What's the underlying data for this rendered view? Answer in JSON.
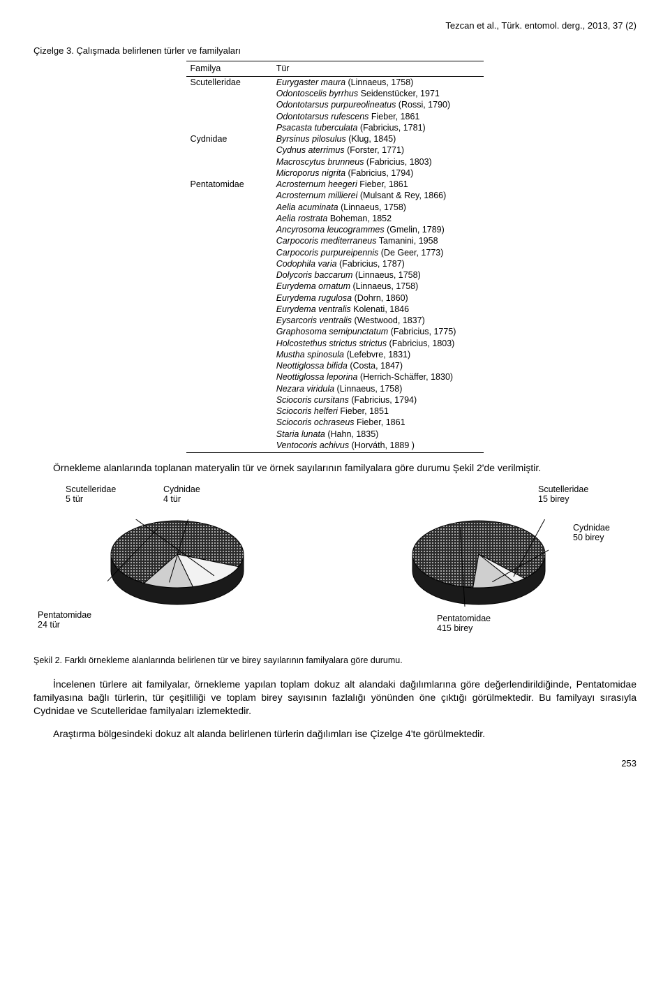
{
  "header": {
    "citation": "Tezcan et al., Türk. entomol. derg., 2013, 37 (2)"
  },
  "table": {
    "caption": "Çizelge 3. Çalışmada belirlenen türler ve familyaları",
    "col1_header": "Familya",
    "col2_header": "Tür",
    "rows": [
      {
        "family": "Scutelleridae",
        "species": "Eurygaster maura",
        "auth": "(Linnaeus, 1758)"
      },
      {
        "family": "",
        "species": "Odontoscelis byrrhus",
        "auth": "Seidenstücker, 1971"
      },
      {
        "family": "",
        "species": "Odontotarsus purpureolineatus",
        "auth": "(Rossi, 1790)"
      },
      {
        "family": "",
        "species": "Odontotarsus rufescens",
        "auth": "Fieber, 1861"
      },
      {
        "family": "",
        "species": "Psacasta tuberculata",
        "auth": "(Fabricius, 1781)"
      },
      {
        "family": "Cydnidae",
        "species": "Byrsinus pilosulus",
        "auth": "(Klug, 1845)"
      },
      {
        "family": "",
        "species": "Cydnus aterrimus",
        "auth": "(Forster, 1771)"
      },
      {
        "family": "",
        "species": "Macroscytus brunneus",
        "auth": "(Fabricius, 1803)"
      },
      {
        "family": "",
        "species": "Microporus nigrita",
        "auth": "(Fabricius, 1794)"
      },
      {
        "family": "Pentatomidae",
        "species": "Acrosternum heegeri",
        "auth": "Fieber, 1861"
      },
      {
        "family": "",
        "species": "Acrosternum millierei",
        "auth": "(Mulsant & Rey, 1866)"
      },
      {
        "family": "",
        "species": "Aelia acuminata",
        "auth": "(Linnaeus, 1758)"
      },
      {
        "family": "",
        "species": "Aelia rostrata",
        "auth": "Boheman, 1852"
      },
      {
        "family": "",
        "species": "Ancyrosoma leucogrammes",
        "auth": "(Gmelin, 1789)"
      },
      {
        "family": "",
        "species": "Carpocoris mediterraneus",
        "auth": "Tamanini, 1958"
      },
      {
        "family": "",
        "species": "Carpocoris purpureipennis",
        "auth": "(De Geer, 1773)"
      },
      {
        "family": "",
        "species": "Codophila varia",
        "auth": "(Fabricius, 1787)"
      },
      {
        "family": "",
        "species": "Dolycoris baccarum",
        "auth": "(Linnaeus, 1758)"
      },
      {
        "family": "",
        "species": "Eurydema ornatum",
        "auth": "(Linnaeus, 1758)"
      },
      {
        "family": "",
        "species": "Eurydema rugulosa",
        "auth": "(Dohrn, 1860)"
      },
      {
        "family": "",
        "species": "Eurydema ventralis",
        "auth": "Kolenati, 1846"
      },
      {
        "family": "",
        "species": "Eysarcoris ventralis",
        "auth": "(Westwood, 1837)"
      },
      {
        "family": "",
        "species": "Graphosoma semipunctatum",
        "auth": "(Fabricius, 1775)"
      },
      {
        "family": "",
        "species": "Holcostethus strictus strictus",
        "auth": "(Fabricius, 1803)"
      },
      {
        "family": "",
        "species": "Mustha spinosula",
        "auth": "(Lefebvre, 1831)"
      },
      {
        "family": "",
        "species": "Neottiglossa bifida",
        "auth": "(Costa, 1847)"
      },
      {
        "family": "",
        "species": "Neottiglossa leporina",
        "auth": "(Herrich-Schäffer, 1830)"
      },
      {
        "family": "",
        "species": "Nezara viridula",
        "auth": "(Linnaeus, 1758)"
      },
      {
        "family": "",
        "species": "Sciocoris cursitans",
        "auth": "(Fabricius, 1794)"
      },
      {
        "family": "",
        "species": "Sciocoris helferi",
        "auth": "Fieber, 1851"
      },
      {
        "family": "",
        "species": "Sciocoris ochraseus",
        "auth": "Fieber, 1861"
      },
      {
        "family": "",
        "species": "Staria lunata",
        "auth": "(Hahn, 1835)"
      },
      {
        "family": "",
        "species": "Ventocoris achivus",
        "auth": "(Horváth, 1889 )"
      }
    ]
  },
  "para1": "Örnekleme alanlarında toplanan materyalin tür ve örnek sayılarının familyalara göre durumu Şekil 2'de verilmiştir.",
  "charts": {
    "type": "pie-3d",
    "pattern_fill": "dotted-black",
    "side_color": "#1a1a1a",
    "slice_light": "#f2f2f2",
    "outline": "#000000",
    "left": {
      "labels": {
        "scut": "Scutelleridae\n5 tür",
        "cyd": "Cydnidae\n4 tür",
        "pent": "Pentatomidae\n24 tür"
      },
      "slices": [
        {
          "name": "Pentatomidae",
          "value": 24
        },
        {
          "name": "Scutelleridae",
          "value": 5
        },
        {
          "name": "Cydnidae",
          "value": 4
        }
      ]
    },
    "right": {
      "labels": {
        "scut": "Scutelleridae\n15 birey",
        "cyd": "Cydnidae\n50 birey",
        "pent": "Pentatomidae\n415 birey"
      },
      "slices": [
        {
          "name": "Pentatomidae",
          "value": 415
        },
        {
          "name": "Scutelleridae",
          "value": 15
        },
        {
          "name": "Cydnidae",
          "value": 50
        }
      ]
    }
  },
  "fig_caption": "Şekil 2. Farklı örnekleme alanlarında belirlenen tür ve birey sayılarının familyalara göre durumu.",
  "para2": "İncelenen türlere ait familyalar, örnekleme yapılan toplam dokuz alt alandaki dağılımlarına göre değerlendirildiğinde, Pentatomidae familyasına bağlı türlerin, tür çeşitliliği ve toplam birey sayısının fazlalığı yönünden öne çıktığı görülmektedir. Bu familyayı sırasıyla Cydnidae ve Scutelleridae familyaları izlemektedir.",
  "para3": "Araştırma bölgesindeki dokuz alt alanda belirlenen türlerin dağılımları ise Çizelge 4'te görülmektedir.",
  "page_number": "253"
}
